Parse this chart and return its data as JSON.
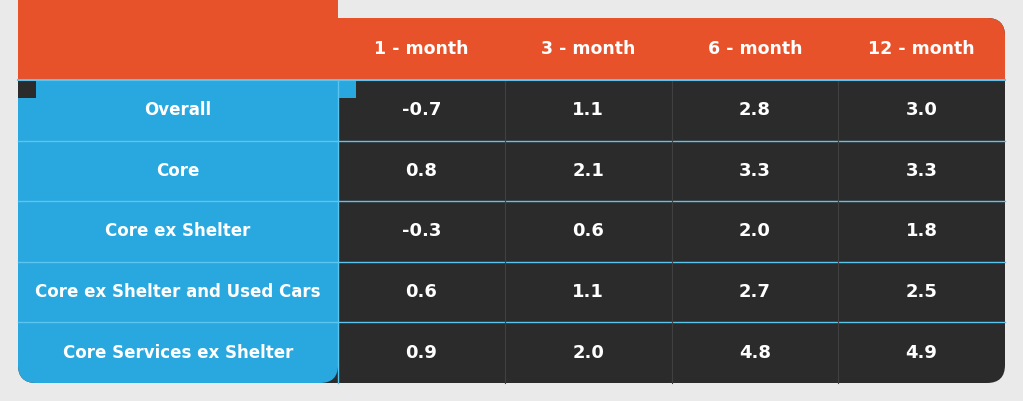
{
  "columns": [
    "1 - month",
    "3 - month",
    "6 - month",
    "12 - month"
  ],
  "rows": [
    {
      "label": "Overall",
      "values": [
        "-0.7",
        "1.1",
        "2.8",
        "3.0"
      ]
    },
    {
      "label": "Core",
      "values": [
        "0.8",
        "2.1",
        "3.3",
        "3.3"
      ]
    },
    {
      "label": "Core ex Shelter",
      "values": [
        "-0.3",
        "0.6",
        "2.0",
        "1.8"
      ]
    },
    {
      "label": "Core ex Shelter and Used Cars",
      "values": [
        "0.6",
        "1.1",
        "2.7",
        "2.5"
      ]
    },
    {
      "label": "Core Services ex Shelter",
      "values": [
        "0.9",
        "2.0",
        "4.8",
        "4.9"
      ]
    }
  ],
  "header_bg": "#E8522A",
  "label_bg": "#29A8E0",
  "data_bg": "#2B2B2B",
  "header_text_color": "#FFFFFF",
  "label_text_color": "#FFFFFF",
  "data_text_color": "#FFFFFF",
  "divider_color": "#5BC4EF",
  "outer_bg": "#EAEAEA",
  "header_font_size": 12.5,
  "label_font_size": 12,
  "data_font_size": 13
}
